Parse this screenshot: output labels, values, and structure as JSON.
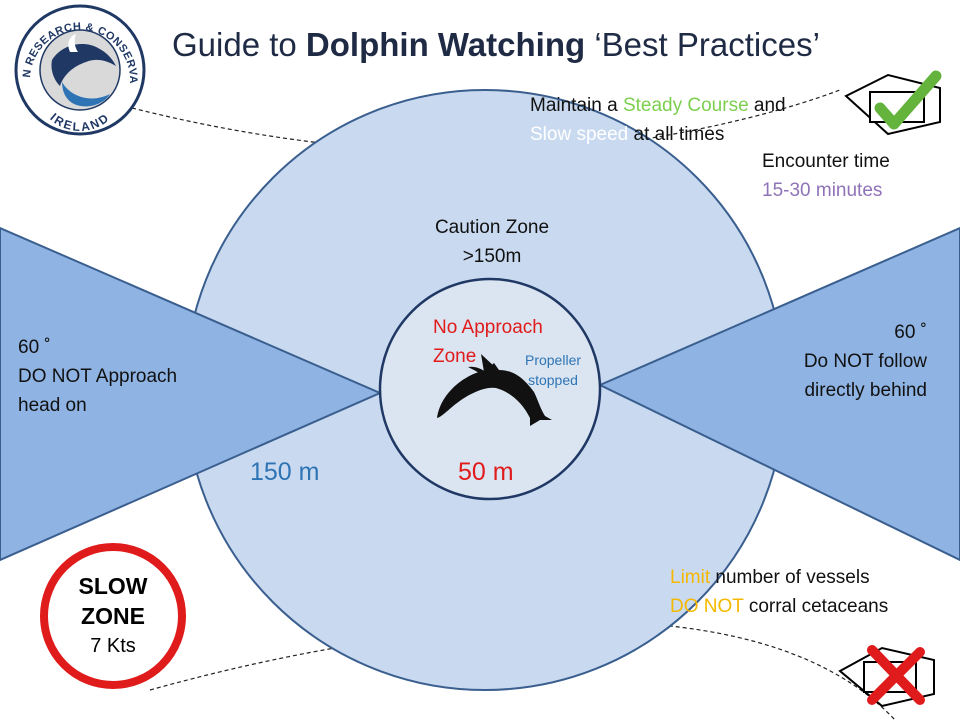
{
  "logo": {
    "text_top": "OCEAN RESEARCH & CONSERVATION",
    "text_bottom": "IRELAND"
  },
  "title": {
    "prefix": "Guide to ",
    "bold": "Dolphin Watching",
    "suffix": " ‘Best Practices’"
  },
  "steady": {
    "a": "Maintain a ",
    "b": "Steady Course",
    "c": "  and",
    "d": "Slow speed",
    "e": " at all times"
  },
  "encounter": {
    "label": "Encounter time",
    "value": "15-30 minutes"
  },
  "caution": {
    "line1": "Caution Zone",
    "line2": ">150m"
  },
  "no_approach": {
    "line1": "No Approach",
    "line2": "Zone"
  },
  "propeller": {
    "line1": "Propeller",
    "line2": "stopped"
  },
  "left_sector": {
    "line1": "60 ˚",
    "line2": "DO NOT Approach",
    "line3": "head on"
  },
  "right_sector": {
    "line1": "60 ˚",
    "line2": "Do NOT follow",
    "line3": "directly behind"
  },
  "distances": {
    "outer": "150 m",
    "inner": "50 m"
  },
  "slow_zone": {
    "line1": "SLOW",
    "line2": "ZONE",
    "line3": "7 Kts"
  },
  "limits": {
    "a": "Limit",
    "b": " number of vessels",
    "c": "DO NOT",
    "d": " corral cetaceans"
  },
  "icons": {
    "check": "check-mark-icon",
    "cross": "cross-mark-icon",
    "boat": "boat-icon",
    "dolphin": "dolphin-icon"
  },
  "colors": {
    "outer_circle": "#c9daf0",
    "inner_circle": "#dbe5f1",
    "sector": "#8fb4e3",
    "green": "#7ccf4f",
    "purple": "#8f73b8",
    "red": "#e01b1b",
    "blue": "#2e74b5",
    "orange": "#f5b800",
    "slow_white": "#ffffff"
  }
}
